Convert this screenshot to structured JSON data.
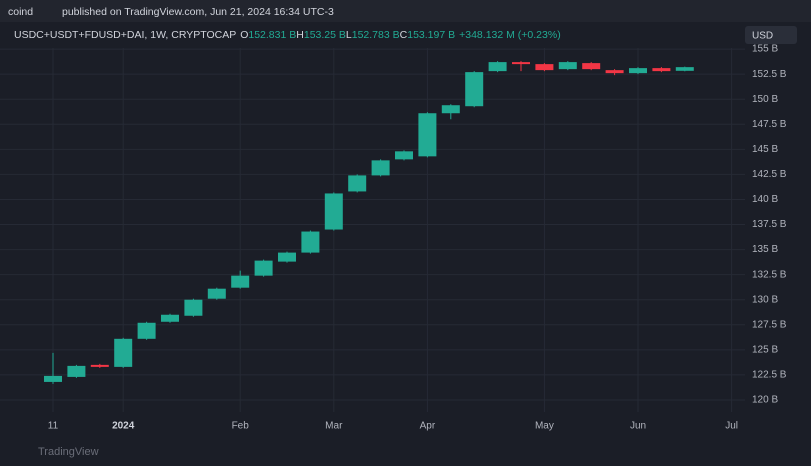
{
  "header": {
    "author": "coind",
    "published": "published on TradingView.com, Jun 21, 2024 16:34 UTC-3",
    "symbol": "USDC+USDT+FDUSD+DAI, 1W, CRYPTOCAP",
    "o_label": "O",
    "o_value": "152.831 B",
    "h_label": "H",
    "h_value": "153.25 B",
    "l_label": "L",
    "l_value": "152.783 B",
    "c_label": "C",
    "c_value": "153.197 B",
    "change": "+348.132 M (+0.23%)",
    "currency": "USD",
    "watermark": "TradingView"
  },
  "chart_data": {
    "type": "candlestick",
    "categories": [
      "11",
      null,
      null,
      "2024",
      null,
      null,
      null,
      null,
      "Feb",
      null,
      null,
      null,
      "Mar",
      null,
      null,
      null,
      "Apr",
      null,
      null,
      null,
      null,
      "May",
      null,
      null,
      null,
      "Jun",
      null,
      null,
      null,
      "Jul"
    ],
    "open": [
      121.8,
      122.3,
      123.5,
      123.3,
      126.1,
      127.8,
      128.4,
      130.1,
      131.2,
      132.4,
      133.8,
      134.7,
      137.0,
      140.8,
      142.4,
      144.0,
      144.3,
      148.6,
      149.3,
      152.8,
      153.7,
      153.5,
      153.0,
      153.6,
      152.9,
      152.6,
      153.1,
      152.831,
      null,
      null
    ],
    "high": [
      124.7,
      123.5,
      123.6,
      126.2,
      127.8,
      128.6,
      130.1,
      131.2,
      132.9,
      134.0,
      134.8,
      136.9,
      140.7,
      142.5,
      144.0,
      144.9,
      148.7,
      149.5,
      152.8,
      153.8,
      153.8,
      153.6,
      153.8,
      153.7,
      153.0,
      153.2,
      153.2,
      153.25,
      null,
      null
    ],
    "low": [
      121.6,
      122.2,
      123.2,
      123.2,
      126.0,
      127.7,
      128.3,
      130.0,
      131.1,
      132.3,
      133.7,
      134.6,
      136.9,
      140.7,
      142.3,
      143.9,
      144.2,
      148.0,
      149.2,
      152.7,
      152.8,
      152.8,
      152.9,
      152.9,
      152.4,
      152.5,
      152.7,
      152.783,
      null,
      null
    ],
    "close": [
      122.4,
      123.4,
      123.3,
      126.1,
      127.7,
      128.5,
      130.0,
      131.1,
      132.4,
      133.9,
      134.7,
      136.8,
      140.6,
      142.4,
      143.9,
      144.8,
      148.6,
      149.4,
      152.7,
      153.7,
      153.5,
      152.9,
      153.7,
      153.0,
      152.6,
      153.1,
      152.8,
      153.197,
      null,
      null
    ],
    "up_color": "#22ab94",
    "down_color": "#f23645",
    "ylim": [
      118.8,
      157.9
    ],
    "yticks": [
      {
        "value": 120,
        "label": "120 B"
      },
      {
        "value": 122.5,
        "label": "122.5 B"
      },
      {
        "value": 125,
        "label": "125 B"
      },
      {
        "value": 127.5,
        "label": "127.5 B"
      },
      {
        "value": 130,
        "label": "130 B"
      },
      {
        "value": 132.5,
        "label": "132.5 B"
      },
      {
        "value": 135,
        "label": "135 B"
      },
      {
        "value": 137.5,
        "label": "137.5 B"
      },
      {
        "value": 140,
        "label": "140 B"
      },
      {
        "value": 142.5,
        "label": "142.5 B"
      },
      {
        "value": 145,
        "label": "145 B"
      },
      {
        "value": 147.5,
        "label": "147.5 B"
      },
      {
        "value": 150,
        "label": "150 B"
      },
      {
        "value": 152.5,
        "label": "152.5 B"
      },
      {
        "value": 155,
        "label": "155 B"
      }
    ],
    "grid": true
  }
}
